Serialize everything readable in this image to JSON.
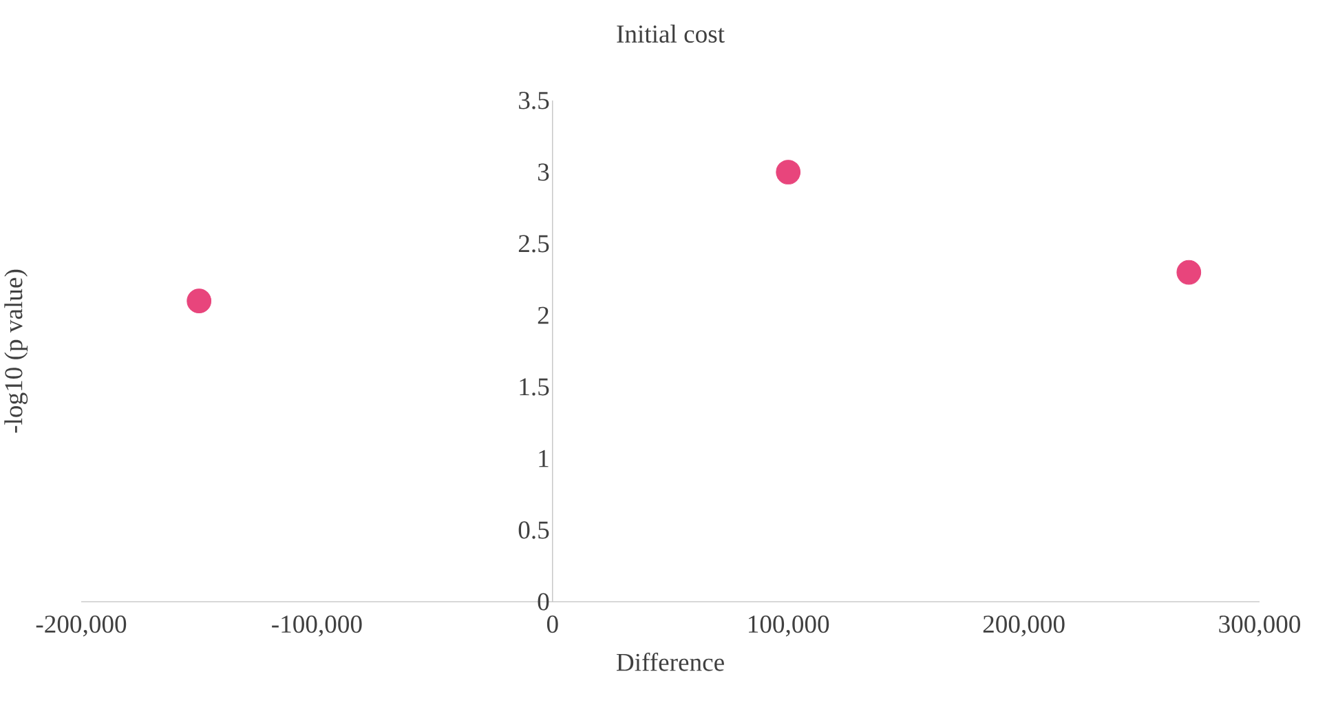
{
  "chart_data": {
    "type": "scatter",
    "title": "Initial cost",
    "xlabel": "Difference",
    "ylabel": "-log10 (p  value)",
    "x": [
      -150000,
      100000,
      270000
    ],
    "series": [
      {
        "color": "#e8457c",
        "values": [
          2.1,
          3.0,
          2.3
        ]
      }
    ],
    "grid": false,
    "xlim": [
      -200000,
      300000
    ],
    "xticks": [
      {
        "value": -200000,
        "label": "-200,000"
      },
      {
        "value": -100000,
        "label": "-100,000"
      },
      0,
      {
        "value": 100000,
        "label": "100,000"
      },
      {
        "value": 200000,
        "label": "200,000"
      },
      {
        "value": 300000,
        "label": "300,000"
      }
    ],
    "ylim": [
      0,
      3.5
    ],
    "yticks": [
      0,
      0.5,
      1,
      1.5,
      2,
      2.5,
      3,
      3.5
    ]
  }
}
